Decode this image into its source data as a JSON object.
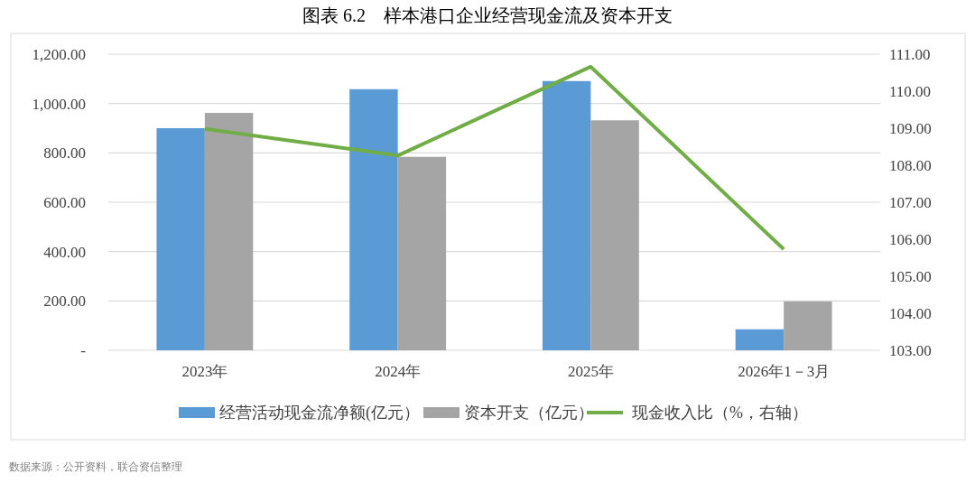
{
  "chart_data": {
    "type": "bar",
    "title": "图表 6.2　样本港口企业经营现金流及资本开支",
    "categories": [
      "2023年",
      "2024年",
      "2025年",
      "2026年1－3月"
    ],
    "series": [
      {
        "name": "经营活动现金流净额(亿元）",
        "color": "#5b9bd5",
        "values": [
          900,
          1058,
          1091,
          85
        ]
      },
      {
        "name": "资本开支（亿元）",
        "color": "#a5a5a5",
        "values": [
          962,
          784,
          932,
          198
        ]
      },
      {
        "name": "现金收入比（%，右轴）",
        "type": "line",
        "axis": "y2",
        "color": "#70ad47",
        "values": [
          108.98,
          108.26,
          110.66,
          105.73
        ]
      }
    ],
    "ylim": [
      0,
      1200
    ],
    "yticks": [
      {
        "value": 0,
        "label": "-"
      },
      {
        "value": 200,
        "label": "200.00"
      },
      {
        "value": 400,
        "label": "400.00"
      },
      {
        "value": 600,
        "label": "600.00"
      },
      {
        "value": 800,
        "label": "800.00"
      },
      {
        "value": 1000,
        "label": "1,000.00"
      },
      {
        "value": 1200,
        "label": "1,200.00"
      }
    ],
    "y2lim": [
      103,
      111
    ],
    "y2ticks": [
      {
        "value": 103,
        "label": "103.00"
      },
      {
        "value": 104,
        "label": "104.00"
      },
      {
        "value": 105,
        "label": "105.00"
      },
      {
        "value": 106,
        "label": "106.00"
      },
      {
        "value": 107,
        "label": "107.00"
      },
      {
        "value": 108,
        "label": "108.00"
      },
      {
        "value": 109,
        "label": "109.00"
      },
      {
        "value": 110,
        "label": "110.00"
      },
      {
        "value": 111,
        "label": "111.00"
      }
    ],
    "grid": "y",
    "legend": "bottom",
    "line_style": "solid",
    "marker": "none",
    "annotations": [
      "数据来源：公开资料，联合资信整理"
    ]
  }
}
